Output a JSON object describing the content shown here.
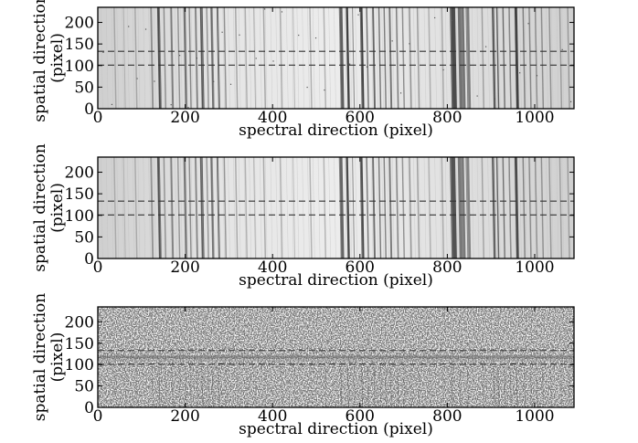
{
  "chart_data": [
    {
      "type": "heatmap",
      "panel": "top",
      "xlabel": "spectral direction (pixel)",
      "ylabel_line1": "spatial direction",
      "ylabel_line2": "(pixel)",
      "xlim": [
        0,
        1090
      ],
      "ylim": [
        0,
        235
      ],
      "xticks": [
        0,
        200,
        400,
        600,
        800,
        1000
      ],
      "yticks": [
        0,
        50,
        100,
        150,
        200
      ],
      "xtick_labels": [
        "0",
        "200",
        "400",
        "600",
        "800",
        "1000"
      ],
      "ytick_labels": [
        "0",
        "50",
        "100",
        "150",
        "200"
      ],
      "dashed_lines_y": [
        101,
        133
      ],
      "colormap": "grayscale",
      "pattern": "spectral absorption lines (vertical bands)"
    },
    {
      "type": "heatmap",
      "panel": "middle",
      "xlabel": "spectral direction (pixel)",
      "ylabel_line1": "spatial direction",
      "ylabel_line2": "(pixel)",
      "xlim": [
        0,
        1090
      ],
      "ylim": [
        0,
        235
      ],
      "xticks": [
        0,
        200,
        400,
        600,
        800,
        1000
      ],
      "yticks": [
        0,
        50,
        100,
        150,
        200
      ],
      "xtick_labels": [
        "0",
        "200",
        "400",
        "600",
        "800",
        "1000"
      ],
      "ytick_labels": [
        "0",
        "50",
        "100",
        "150",
        "200"
      ],
      "dashed_lines_y": [
        101,
        133
      ],
      "colormap": "grayscale",
      "pattern": "spectral absorption lines (vertical bands), smoothed"
    },
    {
      "type": "heatmap",
      "panel": "bottom",
      "xlabel": "spectral direction (pixel)",
      "ylabel_line1": "spatial direction",
      "ylabel_line2": "(pixel)",
      "xlim": [
        0,
        1090
      ],
      "ylim": [
        0,
        235
      ],
      "xticks": [
        0,
        200,
        400,
        600,
        800,
        1000
      ],
      "yticks": [
        0,
        50,
        100,
        150,
        200
      ],
      "xtick_labels": [
        "0",
        "200",
        "400",
        "600",
        "800",
        "1000"
      ],
      "ytick_labels": [
        "0",
        "50",
        "100",
        "150",
        "200"
      ],
      "dashed_lines_y": [
        101,
        133
      ],
      "colormap": "grayscale",
      "pattern": "residual noise with horizontal band near y=118"
    }
  ]
}
